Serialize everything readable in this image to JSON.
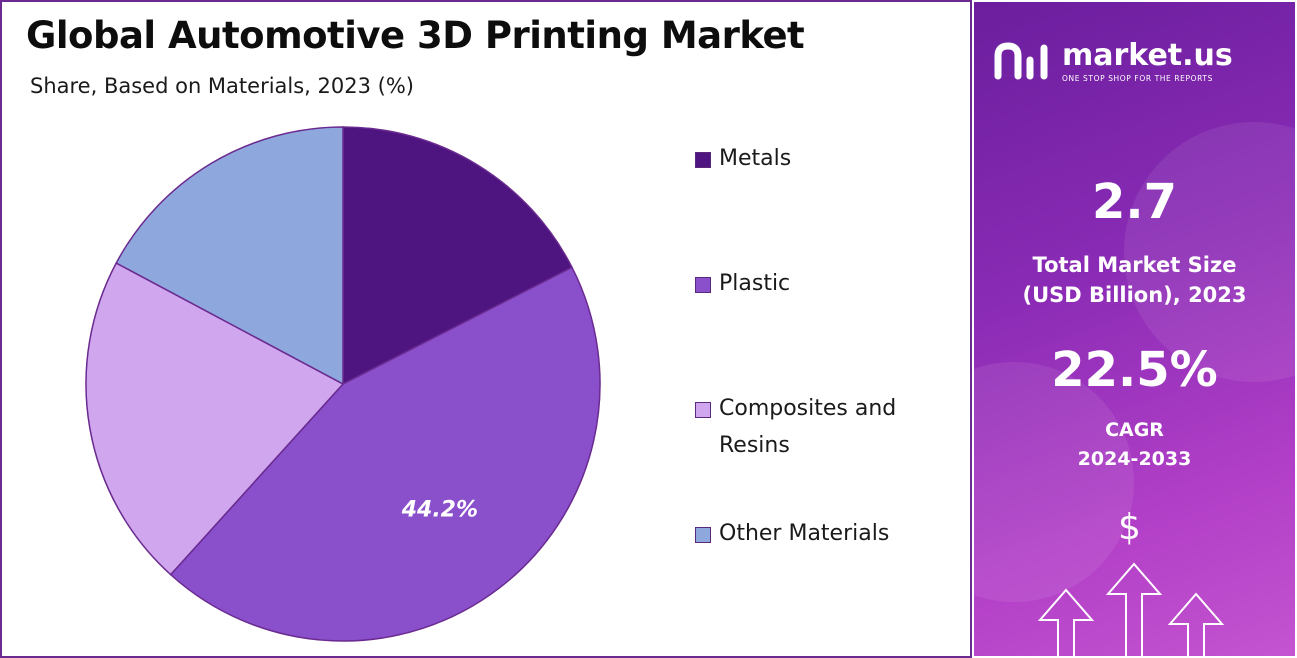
{
  "title": "Global Automotive 3D Printing Market",
  "subtitle": "Share, Based on Materials, 2023 (%)",
  "chart_data": {
    "type": "pie",
    "slices": [
      {
        "label": "Metals",
        "value": 17.5,
        "color": "#4e1480"
      },
      {
        "label": "Plastic",
        "value": 44.2,
        "color": "#8a50cc"
      },
      {
        "label": "Composites and Resins",
        "value": 21.1,
        "color": "#d0a6ef"
      },
      {
        "label": "Other Materials",
        "value": 17.2,
        "color": "#8ea8de"
      }
    ],
    "data_labels": [
      {
        "slice": "Plastic",
        "text": "44.2%"
      }
    ],
    "legend_position": "right"
  },
  "legend": {
    "items": [
      {
        "label": "Metals",
        "color": "#4e1480"
      },
      {
        "label": "Plastic",
        "color": "#8a50cc"
      },
      {
        "label": "Composites and Resins",
        "color": "#d0a6ef"
      },
      {
        "label": "Other Materials",
        "color": "#8ea8de"
      }
    ]
  },
  "brand": {
    "name": "market.us",
    "tagline": "ONE STOP SHOP FOR THE REPORTS",
    "logo_icon": "market-us-logo-icon"
  },
  "stats": {
    "market_size_value": "2.7",
    "market_size_label_line1": "Total Market Size",
    "market_size_label_line2": "(USD Billion), 2023",
    "cagr_value": "22.5%",
    "cagr_label_line1": "CAGR",
    "cagr_label_line2": "2024-2033"
  },
  "icons": {
    "dollar": "$",
    "dollar_icon": "dollar-icon",
    "arrows_icon": "growth-arrows-icon"
  },
  "colors": {
    "panel_border": "#6a2a8f",
    "panel_gradient_start": "#6b1e9e",
    "panel_gradient_end": "#c454d0"
  }
}
